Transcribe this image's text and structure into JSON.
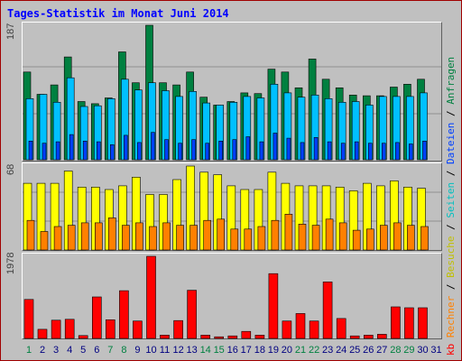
{
  "title": "Tages-Statistik im Monat Juni 2014",
  "legend": {
    "kb": "kb",
    "rechner": "Rechner",
    "besuche": "Besuche",
    "seiten": "Seiten",
    "dateien": "Dateien",
    "anfragen": "Anfragen",
    "sep": " / "
  },
  "colors": {
    "anfragen": "#008040",
    "dateien": "#00c0ff",
    "seiten": "#0040ff",
    "besuche": "#ffff00",
    "rechner": "#ff8000",
    "kb": "#ff0000",
    "weekend_label": "#008040",
    "weekday_label": "#000080",
    "title": "#0000ff"
  },
  "chart_data": [
    {
      "type": "bar",
      "panel": "top",
      "max_label": "187",
      "x": [
        1,
        2,
        3,
        4,
        5,
        6,
        7,
        8,
        9,
        10,
        11,
        12,
        13,
        14,
        15,
        16,
        17,
        18,
        19,
        20,
        21,
        22,
        23,
        24,
        25,
        26,
        27,
        28,
        29,
        30,
        31
      ],
      "ylim": [
        0,
        187
      ],
      "series": [
        {
          "name": "Anfragen",
          "values": [
            122,
            91,
            104,
            143,
            81,
            78,
            86,
            150,
            107,
            187,
            107,
            104,
            122,
            87,
            76,
            81,
            93,
            92,
            126,
            122,
            100,
            140,
            112,
            100,
            90,
            89,
            89,
            101,
            105,
            112,
            0
          ]
        },
        {
          "name": "Dateien",
          "values": [
            85,
            91,
            80,
            114,
            74,
            75,
            85,
            112,
            97,
            107,
            96,
            88,
            95,
            79,
            76,
            80,
            88,
            86,
            105,
            93,
            87,
            90,
            85,
            80,
            81,
            76,
            88,
            88,
            88,
            93,
            0
          ]
        },
        {
          "name": "Seiten",
          "values": [
            26,
            23,
            25,
            35,
            26,
            25,
            21,
            34,
            24,
            38,
            28,
            23,
            28,
            23,
            26,
            28,
            32,
            25,
            37,
            30,
            24,
            31,
            25,
            23,
            25,
            23,
            23,
            24,
            22,
            26,
            0
          ]
        }
      ]
    },
    {
      "type": "bar",
      "panel": "middle",
      "max_label": "68",
      "x": [
        1,
        2,
        3,
        4,
        5,
        6,
        7,
        8,
        9,
        10,
        11,
        12,
        13,
        14,
        15,
        16,
        17,
        18,
        19,
        20,
        21,
        22,
        23,
        24,
        25,
        26,
        27,
        28,
        29,
        30,
        31
      ],
      "ylim": [
        0,
        68
      ],
      "series": [
        {
          "name": "Besuche",
          "values": [
            54,
            54,
            54,
            64,
            51,
            51,
            49,
            52,
            59,
            45,
            45,
            57,
            68,
            63,
            61,
            52,
            49,
            49,
            63,
            54,
            52,
            52,
            52,
            51,
            48,
            54,
            52,
            56,
            51,
            50,
            0
          ]
        },
        {
          "name": "Rechner",
          "values": [
            24,
            15,
            19,
            20,
            22,
            22,
            26,
            20,
            22,
            19,
            22,
            20,
            20,
            24,
            25,
            17,
            17,
            19,
            24,
            29,
            21,
            20,
            25,
            22,
            16,
            17,
            20,
            22,
            20,
            19,
            0
          ]
        }
      ]
    },
    {
      "type": "bar",
      "panel": "bottom",
      "max_label": "1978",
      "x": [
        1,
        2,
        3,
        4,
        5,
        6,
        7,
        8,
        9,
        10,
        11,
        12,
        13,
        14,
        15,
        16,
        17,
        18,
        19,
        20,
        21,
        22,
        23,
        24,
        25,
        26,
        27,
        28,
        29,
        30,
        31
      ],
      "ylim": [
        0,
        1978
      ],
      "series": [
        {
          "name": "kb",
          "values": [
            940,
            220,
            440,
            460,
            70,
            1000,
            450,
            1150,
            420,
            1978,
            80,
            430,
            1160,
            80,
            40,
            60,
            170,
            80,
            1560,
            420,
            600,
            420,
            1360,
            480,
            60,
            80,
            100,
            760,
            740,
            740,
            0
          ]
        }
      ]
    }
  ],
  "x_labels": [
    "1",
    "2",
    "3",
    "4",
    "5",
    "6",
    "7",
    "8",
    "9",
    "10",
    "11",
    "12",
    "13",
    "14",
    "15",
    "16",
    "17",
    "18",
    "19",
    "20",
    "21",
    "22",
    "23",
    "24",
    "25",
    "26",
    "27",
    "28",
    "29",
    "30",
    "31"
  ],
  "weekend_days": [
    1,
    7,
    8,
    14,
    15,
    21,
    22,
    28,
    29
  ]
}
